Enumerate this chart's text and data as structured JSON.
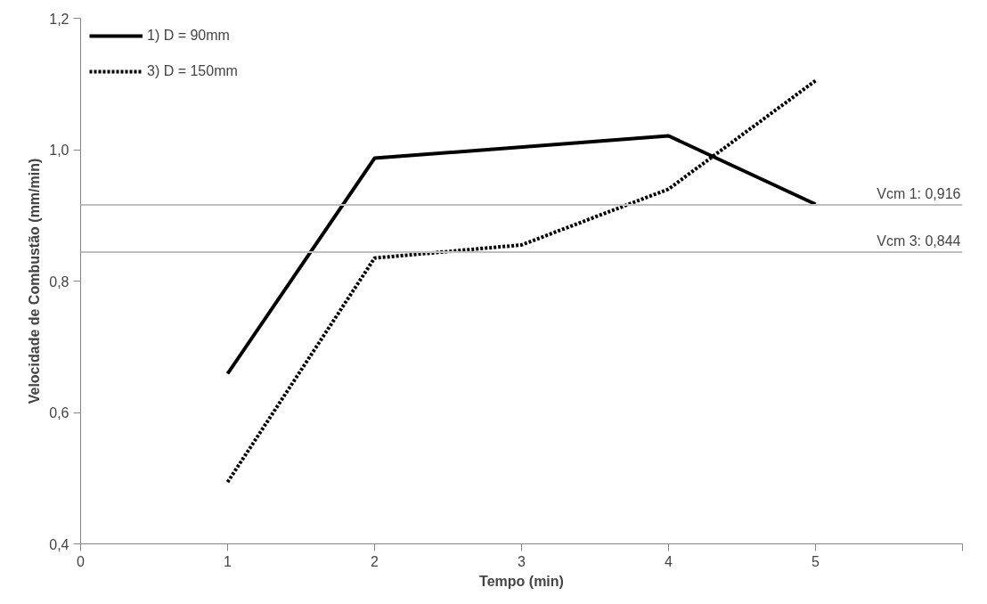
{
  "chart_data": {
    "type": "line",
    "xlabel": "Tempo (min)",
    "ylabel": "Velocidade de Combustão (mm/min)",
    "xlim": [
      0,
      6
    ],
    "xticks": [
      0,
      1,
      2,
      3,
      4,
      5,
      {
        "value": 6,
        "label": null
      }
    ],
    "ylim": [
      0.4,
      1.2
    ],
    "yticks": [
      {
        "value": 0.4,
        "label": "0,4"
      },
      {
        "value": 0.6,
        "label": "0,6"
      },
      {
        "value": 0.8,
        "label": "0,8"
      },
      {
        "value": 1.0,
        "label": "1,0"
      },
      {
        "value": 1.2,
        "label": "1,2"
      }
    ],
    "series": [
      {
        "name": "1) D = 90mm",
        "color": "#000000",
        "line_style": "solid",
        "x": [
          1,
          2,
          4,
          5
        ],
        "values": [
          0.659,
          0.987,
          1.021,
          0.917
        ]
      },
      {
        "name": "3) D = 150mm",
        "color": "#000000",
        "line_style": "dotted",
        "x": [
          1,
          2,
          3,
          4,
          5
        ],
        "values": [
          0.494,
          0.835,
          0.855,
          0.94,
          1.105
        ]
      }
    ],
    "ref_lines": [
      {
        "axis": "y",
        "value": 0.916,
        "label": "Vcm 1: 0,916",
        "color": "#bfbfbf"
      },
      {
        "axis": "y",
        "value": 0.844,
        "label": "Vcm 3: 0,844",
        "color": "#bfbfbf"
      }
    ],
    "grid": false,
    "legend": "top left",
    "marker": "none"
  }
}
